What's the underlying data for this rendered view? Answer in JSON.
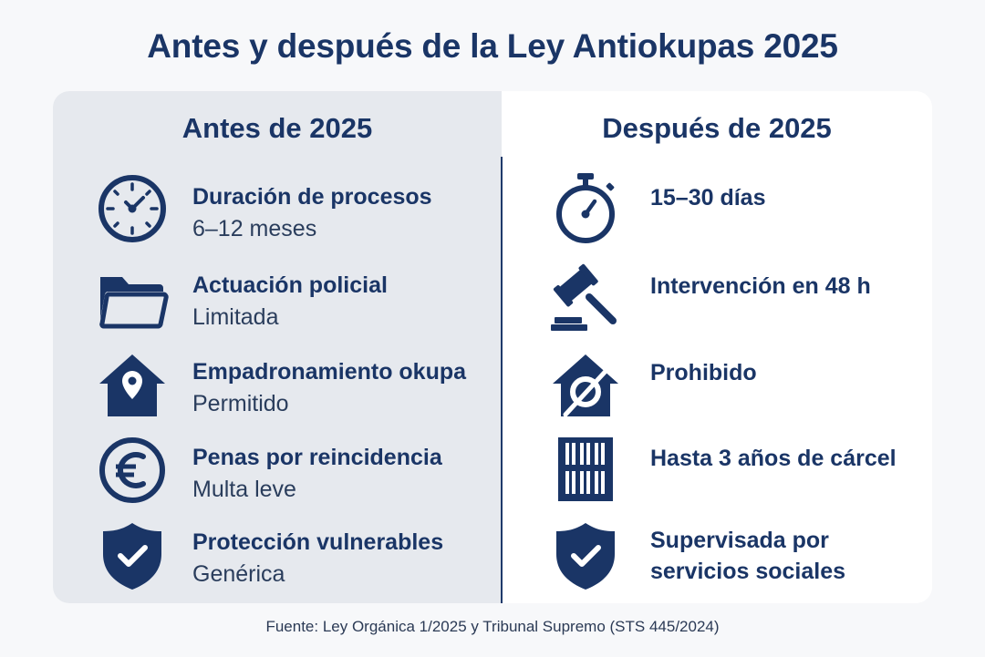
{
  "title": "Antes y después de la Ley Antiokupas 2025",
  "before": {
    "heading": "Antes de 2025",
    "items": [
      {
        "icon": "clock-icon",
        "label": "Duración de procesos",
        "value": "6–12 meses"
      },
      {
        "icon": "folder-icon",
        "label": "Actuación policial",
        "value": "Limitada"
      },
      {
        "icon": "house-location-pin-icon",
        "label": "Empadronamiento okupa",
        "value": "Permitido"
      },
      {
        "icon": "euro-icon",
        "label": "Penas por reincidencia",
        "value": "Multa leve"
      },
      {
        "icon": "shield-check-icon",
        "label": "Protección vulnerables",
        "value": "Genérica"
      }
    ]
  },
  "after": {
    "heading": "Después de 2025",
    "items": [
      {
        "icon": "stopwatch-icon",
        "text_lines": [
          "15–30 días"
        ]
      },
      {
        "icon": "gavel-icon",
        "text_lines": [
          "Intervención en 48 h"
        ]
      },
      {
        "icon": "house-prohibited-icon",
        "text_lines": [
          "Prohibido"
        ]
      },
      {
        "icon": "jail-bars-icon",
        "text_lines": [
          "Hasta 3 años de cárcel"
        ]
      },
      {
        "icon": "shield-check-icon",
        "text_lines": [
          "Supervisada por",
          "servicios sociales"
        ]
      }
    ]
  },
  "source": "Fuente: Ley Orgánica 1/2025 y Tribunal Supremo (STS 445/2024)",
  "colors": {
    "navy": "#1a3566",
    "left_panel": "#e6e9ee",
    "background": "#f7f8fa"
  }
}
